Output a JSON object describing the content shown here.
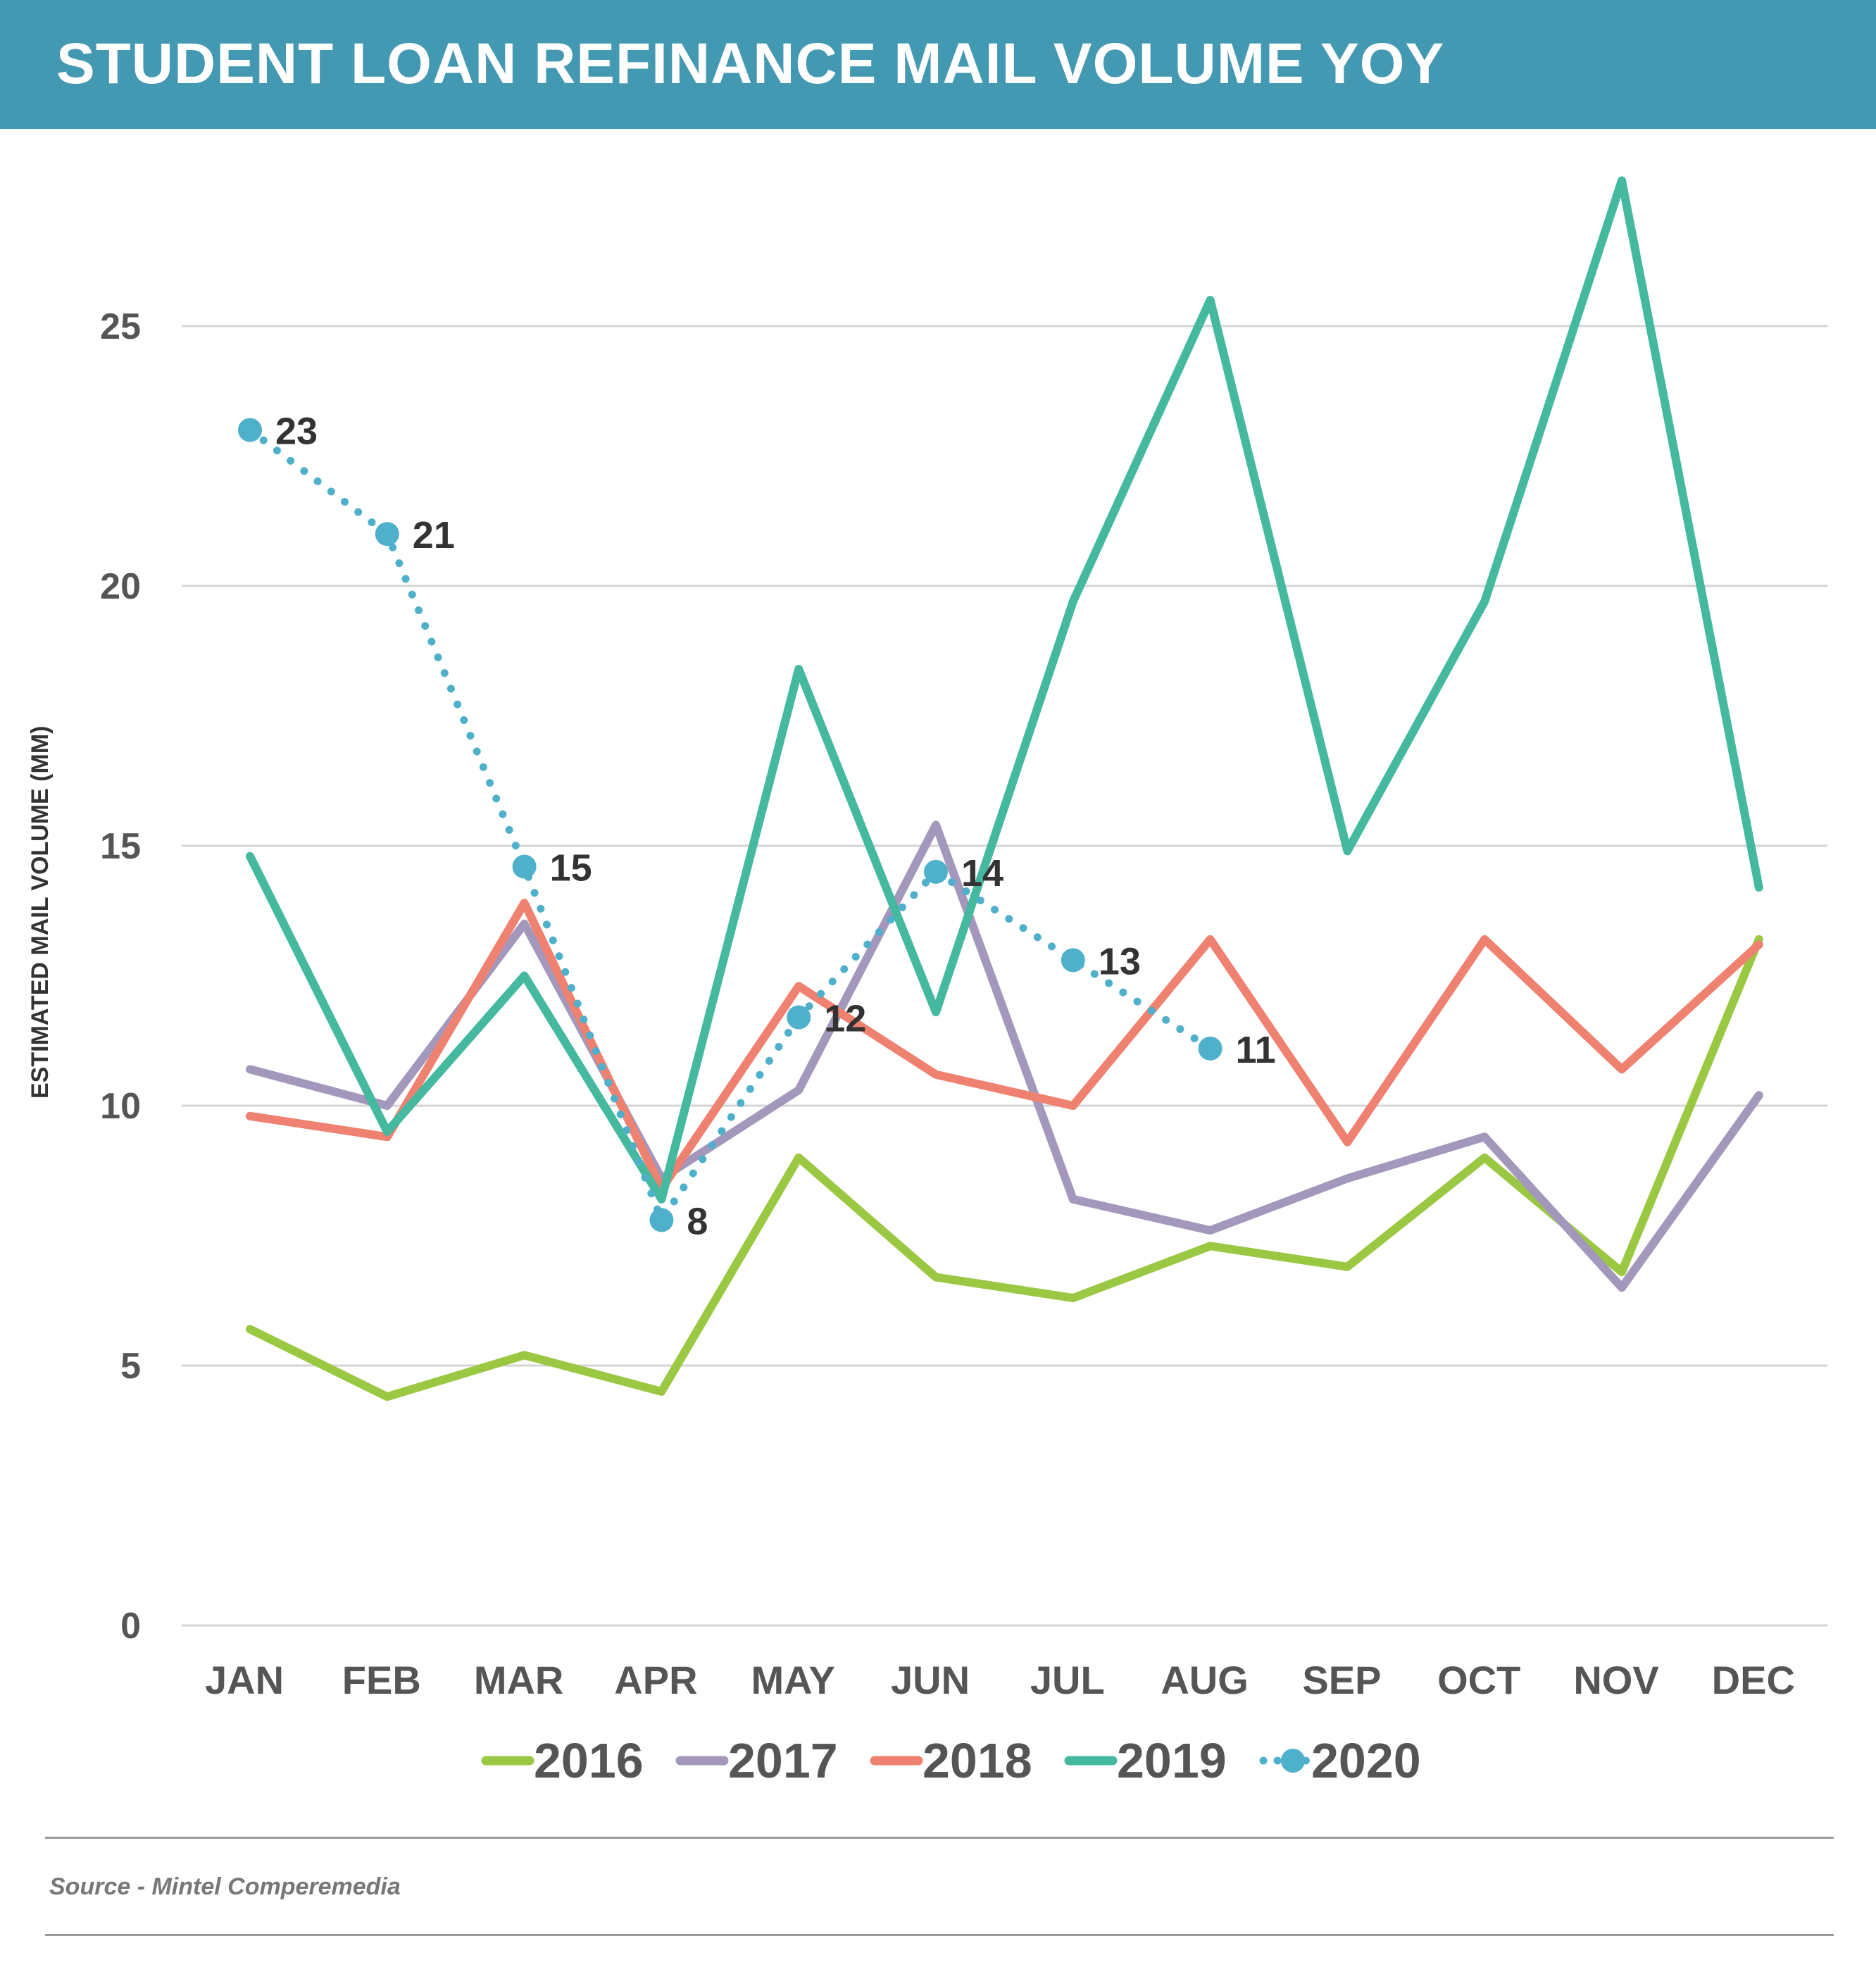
{
  "header": {
    "title": "STUDENT LOAN REFINANCE MAIL VOLUME YOY",
    "bg_color": "#4499b2"
  },
  "footer": {
    "source": "Source - Mintel Comperemedia"
  },
  "chart_data": {
    "type": "line",
    "title": "STUDENT LOAN REFINANCE MAIL VOLUME YOY",
    "xlabel": "",
    "ylabel": "ESTIMATED MAIL VOLUME (MM)",
    "ylim": [
      0,
      28
    ],
    "yticks": [
      0,
      5,
      10,
      15,
      20,
      25
    ],
    "grid": true,
    "legend_position": "bottom",
    "categories": [
      "JAN",
      "FEB",
      "MAR",
      "APR",
      "MAY",
      "JUN",
      "JUL",
      "AUG",
      "SEP",
      "OCT",
      "NOV",
      "DEC"
    ],
    "series": [
      {
        "name": "2016",
        "color": "#9bc843",
        "style": "solid",
        "values": [
          5.7,
          4.4,
          5.2,
          4.5,
          9.0,
          6.7,
          6.3,
          7.3,
          6.9,
          9.0,
          6.8,
          13.2
        ]
      },
      {
        "name": "2017",
        "color": "#a397bc",
        "style": "solid",
        "values": [
          10.7,
          10.0,
          13.5,
          8.6,
          10.3,
          15.4,
          8.2,
          7.6,
          8.6,
          9.4,
          6.5,
          10.2
        ]
      },
      {
        "name": "2018",
        "color": "#ef8170",
        "style": "solid",
        "values": [
          9.8,
          9.4,
          13.9,
          8.4,
          12.3,
          10.6,
          10.0,
          13.2,
          9.3,
          13.2,
          10.7,
          13.1
        ]
      },
      {
        "name": "2019",
        "color": "#45b99f",
        "style": "solid",
        "values": [
          14.8,
          9.5,
          12.5,
          8.2,
          18.4,
          11.8,
          19.7,
          25.5,
          14.9,
          19.7,
          27.8,
          14.2
        ]
      },
      {
        "name": "2020",
        "color": "#4fb0cc",
        "style": "dotted-markers",
        "values": [
          23.0,
          21.0,
          14.6,
          7.8,
          11.7,
          14.5,
          12.8,
          11.1
        ],
        "data_labels": [
          "23",
          "21",
          "15",
          "8",
          "12",
          "14",
          "13",
          "11"
        ]
      }
    ]
  }
}
